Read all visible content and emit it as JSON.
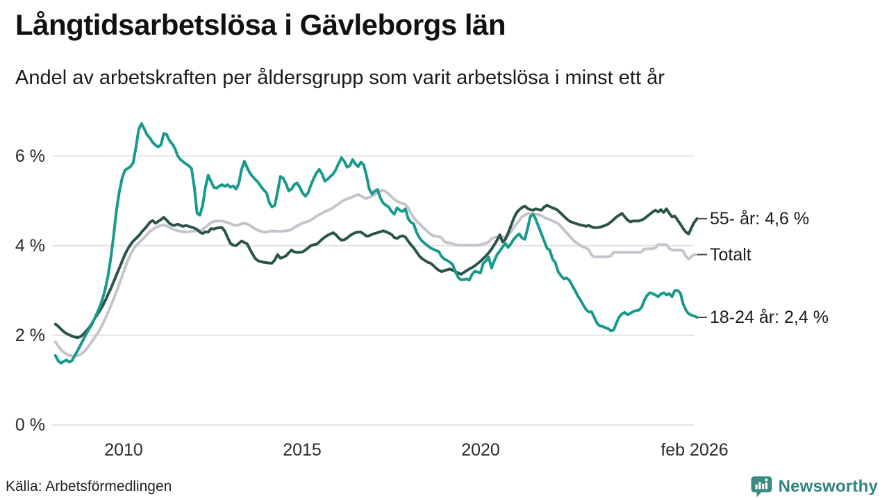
{
  "header": {
    "title": "Långtidsarbetslösa i Gävleborgs län",
    "subtitle": "Andel av arbetskraften per åldersgrupp som varit arbetslösa i minst ett år"
  },
  "footer": {
    "source": "Källa: Arbetsförmedlingen",
    "brand": "Newsworthy"
  },
  "colors": {
    "teal_line": "#189a8b",
    "dark_green_line": "#2a5349",
    "gray_line": "#c5c4cc",
    "gridline": "#e3e3e6",
    "end_tick": "#4a4a4a",
    "logo_teal": "#3a8b81",
    "brand_text": "#2e8478"
  },
  "chart_data": {
    "type": "line",
    "title": "Långtidsarbetslösa i Gävleborgs län",
    "subtitle": "Andel av arbetskraften per åldersgrupp som varit arbetslösa i minst ett år",
    "unit": "%",
    "grid": "horizontal-only",
    "legend_position": "right-end-labels",
    "x_start_year": 2008.09,
    "x_step_years": 0.0778,
    "x_axis": {
      "range": [
        2008.0,
        2026.2
      ],
      "ticks": [
        {
          "label": "2010",
          "year": 2010
        },
        {
          "label": "2015",
          "year": 2015
        },
        {
          "label": "2020",
          "year": 2020
        },
        {
          "label": "feb 2026",
          "year": 2026.06
        }
      ]
    },
    "y_axis": {
      "range": [
        0,
        6.9
      ],
      "ticks": [
        {
          "label": "0 %",
          "value": 0
        },
        {
          "label": "2 %",
          "value": 2
        },
        {
          "label": "4 %",
          "value": 4
        },
        {
          "label": "6 %",
          "value": 6
        }
      ]
    },
    "series": [
      {
        "name": "Totalt",
        "end_label": "Totalt",
        "color": "#c5c4cc",
        "values": [
          1.85,
          1.76,
          1.68,
          1.62,
          1.58,
          1.55,
          1.54,
          1.54,
          1.55,
          1.57,
          1.62,
          1.68,
          1.76,
          1.85,
          1.94,
          2.03,
          2.13,
          2.25,
          2.38,
          2.52,
          2.66,
          2.82,
          2.98,
          3.15,
          3.32,
          3.5,
          3.66,
          3.8,
          3.92,
          4.0,
          4.06,
          4.12,
          4.18,
          4.25,
          4.31,
          4.36,
          4.4,
          4.43,
          4.45,
          4.46,
          4.44,
          4.41,
          4.38,
          4.35,
          4.33,
          4.32,
          4.31,
          4.3,
          4.31,
          4.32,
          4.32,
          4.33,
          4.33,
          4.36,
          4.41,
          4.46,
          4.51,
          4.54,
          4.55,
          4.55,
          4.55,
          4.53,
          4.51,
          4.49,
          4.46,
          4.45,
          4.46,
          4.49,
          4.5,
          4.48,
          4.45,
          4.41,
          4.37,
          4.34,
          4.32,
          4.3,
          4.3,
          4.32,
          4.33,
          4.32,
          4.32,
          4.32,
          4.32,
          4.33,
          4.34,
          4.36,
          4.4,
          4.44,
          4.47,
          4.5,
          4.52,
          4.54,
          4.57,
          4.61,
          4.66,
          4.69,
          4.72,
          4.76,
          4.78,
          4.81,
          4.85,
          4.89,
          4.93,
          4.98,
          5.02,
          5.04,
          5.06,
          5.09,
          5.12,
          5.14,
          5.11,
          5.07,
          5.05,
          5.08,
          5.1,
          5.14,
          5.18,
          5.22,
          5.24,
          5.2,
          5.15,
          5.09,
          5.03,
          4.99,
          4.96,
          4.94,
          4.92,
          4.84,
          4.72,
          4.62,
          4.55,
          4.49,
          4.43,
          4.37,
          4.31,
          4.26,
          4.22,
          4.21,
          4.2,
          4.18,
          4.09,
          4.06,
          4.06,
          4.04,
          4.02,
          4.01,
          4.01,
          4.01,
          4.01,
          4.01,
          4.01,
          4.01,
          4.01,
          4.02,
          4.04,
          4.05,
          4.09,
          4.15,
          4.18,
          4.2,
          4.21,
          4.2,
          4.19,
          4.23,
          4.31,
          4.4,
          4.48,
          4.56,
          4.64,
          4.68,
          4.71,
          4.72,
          4.71,
          4.7,
          4.69,
          4.67,
          4.63,
          4.6,
          4.58,
          4.55,
          4.52,
          4.49,
          4.43,
          4.36,
          4.29,
          4.22,
          4.15,
          4.09,
          4.05,
          4.0,
          3.97,
          3.95,
          3.91,
          3.79,
          3.75,
          3.75,
          3.75,
          3.75,
          3.75,
          3.75,
          3.77,
          3.85,
          3.85,
          3.85,
          3.85,
          3.85,
          3.85,
          3.85,
          3.85,
          3.85,
          3.85,
          3.86,
          3.92,
          3.93,
          3.93,
          3.93,
          3.95,
          4.02,
          4.02,
          4.02,
          4.02,
          3.94,
          3.9,
          3.9,
          3.9,
          3.9,
          3.88,
          3.76,
          3.7,
          3.76,
          3.8,
          3.8
        ]
      },
      {
        "name": "55- år",
        "end_label": "55- år: 4,6 %",
        "color": "#2a5349",
        "values": [
          2.25,
          2.2,
          2.14,
          2.08,
          2.04,
          2.01,
          1.98,
          1.96,
          1.95,
          1.97,
          2.02,
          2.09,
          2.16,
          2.25,
          2.36,
          2.46,
          2.55,
          2.66,
          2.78,
          2.92,
          3.05,
          3.2,
          3.35,
          3.5,
          3.65,
          3.8,
          3.92,
          4.02,
          4.1,
          4.16,
          4.22,
          4.3,
          4.37,
          4.44,
          4.52,
          4.56,
          4.5,
          4.54,
          4.58,
          4.63,
          4.57,
          4.5,
          4.46,
          4.45,
          4.48,
          4.45,
          4.43,
          4.45,
          4.43,
          4.41,
          4.39,
          4.36,
          4.3,
          4.27,
          4.31,
          4.3,
          4.38,
          4.37,
          4.39,
          4.4,
          4.4,
          4.32,
          4.18,
          4.05,
          4.01,
          4.0,
          4.05,
          4.1,
          4.07,
          4.04,
          3.92,
          3.81,
          3.71,
          3.66,
          3.64,
          3.63,
          3.62,
          3.61,
          3.61,
          3.68,
          3.8,
          3.72,
          3.74,
          3.77,
          3.84,
          3.9,
          3.86,
          3.85,
          3.85,
          3.86,
          3.9,
          3.95,
          4.0,
          4.02,
          4.03,
          4.08,
          4.14,
          4.19,
          4.23,
          4.26,
          4.29,
          4.24,
          4.17,
          4.12,
          4.13,
          4.17,
          4.22,
          4.26,
          4.29,
          4.3,
          4.3,
          4.26,
          4.21,
          4.22,
          4.25,
          4.27,
          4.29,
          4.31,
          4.33,
          4.31,
          4.28,
          4.25,
          4.18,
          4.16,
          4.2,
          4.22,
          4.19,
          4.1,
          4.02,
          3.95,
          3.86,
          3.77,
          3.71,
          3.67,
          3.63,
          3.61,
          3.56,
          3.5,
          3.45,
          3.42,
          3.44,
          3.46,
          3.48,
          3.45,
          3.42,
          3.39,
          3.36,
          3.4,
          3.44,
          3.48,
          3.51,
          3.55,
          3.6,
          3.65,
          3.71,
          3.77,
          3.84,
          3.92,
          4.02,
          4.12,
          4.24,
          4.08,
          4.14,
          4.28,
          4.44,
          4.6,
          4.73,
          4.8,
          4.85,
          4.88,
          4.83,
          4.8,
          4.79,
          4.82,
          4.8,
          4.79,
          4.86,
          4.9,
          4.87,
          4.84,
          4.82,
          4.78,
          4.72,
          4.66,
          4.6,
          4.55,
          4.52,
          4.5,
          4.48,
          4.46,
          4.45,
          4.43,
          4.45,
          4.42,
          4.4,
          4.4,
          4.41,
          4.43,
          4.45,
          4.48,
          4.53,
          4.58,
          4.64,
          4.68,
          4.72,
          4.64,
          4.57,
          4.53,
          4.55,
          4.55,
          4.55,
          4.57,
          4.6,
          4.65,
          4.7,
          4.75,
          4.79,
          4.75,
          4.8,
          4.74,
          4.82,
          4.72,
          4.64,
          4.66,
          4.57,
          4.48,
          4.38,
          4.3,
          4.26,
          4.4,
          4.52,
          4.6
        ]
      },
      {
        "name": "18-24 år",
        "end_label": "18-24 år: 2,4 %",
        "color": "#189a8b",
        "values": [
          1.55,
          1.43,
          1.38,
          1.42,
          1.45,
          1.4,
          1.44,
          1.55,
          1.66,
          1.78,
          1.9,
          2.02,
          2.13,
          2.23,
          2.36,
          2.5,
          2.64,
          2.82,
          3.05,
          3.35,
          3.75,
          4.25,
          4.8,
          5.2,
          5.5,
          5.68,
          5.72,
          5.76,
          5.85,
          6.2,
          6.6,
          6.72,
          6.6,
          6.47,
          6.4,
          6.3,
          6.24,
          6.2,
          6.25,
          6.5,
          6.48,
          6.35,
          6.27,
          6.17,
          6.0,
          5.92,
          5.87,
          5.82,
          5.78,
          5.72,
          5.3,
          4.72,
          4.68,
          4.9,
          5.3,
          5.57,
          5.43,
          5.3,
          5.28,
          5.33,
          5.36,
          5.32,
          5.36,
          5.3,
          5.33,
          5.26,
          5.38,
          5.7,
          5.88,
          5.74,
          5.62,
          5.54,
          5.47,
          5.41,
          5.32,
          5.24,
          5.18,
          4.96,
          4.86,
          4.9,
          5.2,
          5.54,
          5.5,
          5.38,
          5.22,
          5.26,
          5.36,
          5.4,
          5.3,
          5.17,
          5.1,
          5.18,
          5.35,
          5.5,
          5.62,
          5.7,
          5.6,
          5.44,
          5.48,
          5.54,
          5.6,
          5.7,
          5.84,
          5.96,
          5.88,
          5.75,
          5.78,
          5.92,
          5.82,
          5.76,
          5.86,
          5.8,
          5.56,
          5.26,
          5.15,
          5.22,
          5.25,
          5.06,
          4.95,
          4.9,
          4.86,
          4.76,
          4.7,
          4.84,
          4.79,
          4.76,
          4.82,
          4.6,
          4.52,
          4.48,
          4.3,
          4.18,
          4.1,
          4.05,
          4.0,
          3.95,
          3.92,
          3.89,
          3.87,
          3.76,
          3.7,
          3.67,
          3.63,
          3.58,
          3.42,
          3.29,
          3.24,
          3.24,
          3.26,
          3.23,
          3.36,
          3.43,
          3.41,
          3.39,
          3.6,
          3.66,
          3.74,
          3.5,
          3.66,
          3.8,
          3.88,
          3.97,
          4.05,
          3.96,
          4.04,
          4.14,
          4.21,
          4.26,
          4.17,
          4.14,
          4.38,
          4.65,
          4.7,
          4.58,
          4.42,
          4.26,
          4.1,
          3.94,
          3.9,
          3.7,
          3.62,
          3.42,
          3.33,
          3.26,
          3.28,
          3.23,
          3.12,
          3.01,
          2.89,
          2.79,
          2.68,
          2.58,
          2.52,
          2.53,
          2.4,
          2.27,
          2.21,
          2.2,
          2.17,
          2.15,
          2.1,
          2.12,
          2.28,
          2.41,
          2.48,
          2.51,
          2.46,
          2.49,
          2.53,
          2.55,
          2.56,
          2.62,
          2.78,
          2.89,
          2.95,
          2.93,
          2.9,
          2.86,
          2.92,
          2.95,
          2.9,
          2.93,
          2.86,
          3.0,
          3.0,
          2.94,
          2.7,
          2.56,
          2.48,
          2.45,
          2.43,
          2.4
        ]
      }
    ]
  }
}
